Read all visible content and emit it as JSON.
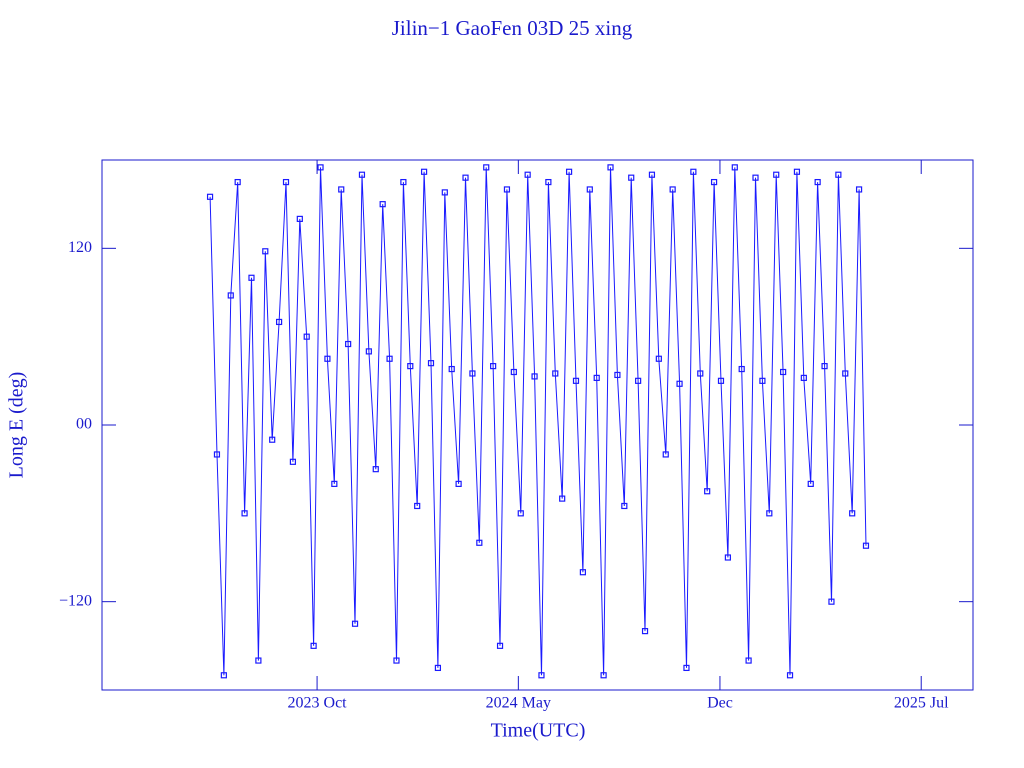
{
  "chart_data": {
    "type": "line",
    "title": "Jilin−1 GaoFen 03D 25 xing",
    "x_label": "Time(UTC)",
    "y_label": "Long E (deg)",
    "xlim": [
      2023.127,
      2025.65
    ],
    "ylim": [
      -180,
      180
    ],
    "xticks": [
      {
        "value": 2023.75,
        "label": "2023 Oct"
      },
      {
        "value": 2024.333,
        "label": "2024 May"
      },
      {
        "value": 2024.917,
        "label": "Dec"
      },
      {
        "value": 2025.5,
        "label": "2025 Jul"
      }
    ],
    "yticks": [
      {
        "value": -120,
        "label": "−120"
      },
      {
        "value": 0,
        "label": "00"
      },
      120
    ],
    "color": "#1a1aff",
    "markers": true,
    "x": [
      2023.44,
      2023.46,
      2023.48,
      2023.5,
      2023.52,
      2023.54,
      2023.56,
      2023.58,
      2023.6,
      2023.62,
      2023.64,
      2023.66,
      2023.68,
      2023.7,
      2023.72,
      2023.74,
      2023.76,
      2023.78,
      2023.8,
      2023.82,
      2023.84,
      2023.86,
      2023.88,
      2023.9,
      2023.92,
      2023.94,
      2023.96,
      2023.98,
      2024.0,
      2024.02,
      2024.04,
      2024.06,
      2024.08,
      2024.1,
      2024.12,
      2024.14,
      2024.16,
      2024.18,
      2024.2,
      2024.22,
      2024.24,
      2024.26,
      2024.28,
      2024.3,
      2024.32,
      2024.34,
      2024.36,
      2024.38,
      2024.4,
      2024.42,
      2024.44,
      2024.46,
      2024.48,
      2024.5,
      2024.52,
      2024.54,
      2024.56,
      2024.58,
      2024.6,
      2024.62,
      2024.64,
      2024.66,
      2024.68,
      2024.7,
      2024.72,
      2024.74,
      2024.76,
      2024.78,
      2024.8,
      2024.82,
      2024.84,
      2024.86,
      2024.88,
      2024.9,
      2024.92,
      2024.94,
      2024.96,
      2024.98,
      2025.0,
      2025.02,
      2025.04,
      2025.06,
      2025.08,
      2025.1,
      2025.12,
      2025.14,
      2025.16,
      2025.18,
      2025.2,
      2025.22,
      2025.24,
      2025.26,
      2025.28,
      2025.3,
      2025.32,
      2025.34
    ],
    "values": [
      155,
      -20,
      -170,
      88,
      165,
      -60,
      100,
      -160,
      118,
      -10,
      70,
      165,
      -25,
      140,
      60,
      -150,
      175,
      45,
      -40,
      160,
      55,
      -135,
      170,
      50,
      -30,
      150,
      45,
      -160,
      165,
      40,
      -55,
      172,
      42,
      -165,
      158,
      38,
      -40,
      168,
      35,
      -80,
      175,
      40,
      -150,
      160,
      36,
      -60,
      170,
      33,
      -170,
      165,
      35,
      -50,
      172,
      30,
      -100,
      160,
      32,
      -170,
      175,
      34,
      -55,
      168,
      30,
      -140,
      170,
      45,
      -20,
      160,
      28,
      -165,
      172,
      35,
      -45,
      165,
      30,
      -90,
      175,
      38,
      -160,
      168,
      30,
      -60,
      170,
      36,
      -170,
      172,
      32,
      -40,
      165,
      40,
      -120,
      170,
      35,
      -60,
      160,
      -82
    ]
  }
}
